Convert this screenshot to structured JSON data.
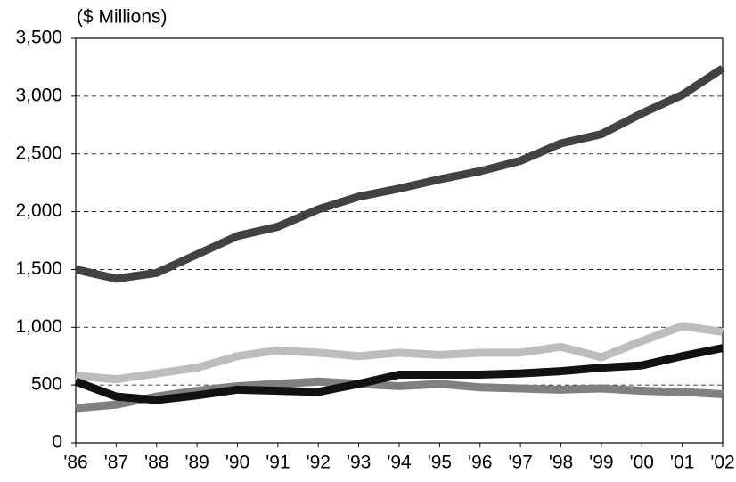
{
  "chart_data": {
    "type": "line",
    "y_label": "($ Millions)",
    "categories": [
      "'86",
      "'87",
      "'88",
      "'89",
      "'90",
      "'91",
      "'92",
      "'93",
      "'94",
      "'95",
      "'96",
      "'97",
      "'98",
      "'99",
      "'00",
      "'01",
      "'02"
    ],
    "series": [
      {
        "color": "#808080",
        "values": [
          300,
          330,
          400,
          450,
          490,
          510,
          530,
          510,
          490,
          510,
          480,
          470,
          460,
          470,
          450,
          440,
          420
        ]
      },
      {
        "color": "#bdbdbd",
        "values": [
          580,
          550,
          600,
          650,
          750,
          800,
          780,
          750,
          780,
          760,
          780,
          780,
          830,
          740,
          880,
          1010,
          960
        ]
      },
      {
        "color": "#111111",
        "values": [
          530,
          400,
          370,
          410,
          460,
          450,
          440,
          510,
          590,
          590,
          590,
          600,
          620,
          650,
          670,
          750,
          820
        ]
      },
      {
        "color": "#424242",
        "values": [
          1500,
          1420,
          1470,
          1630,
          1790,
          1870,
          2020,
          2130,
          2200,
          2280,
          2350,
          2440,
          2590,
          2670,
          2850,
          3010,
          3240
        ]
      }
    ],
    "ylim": [
      0,
      3500
    ],
    "yticks": [
      0,
      500,
      {
        "value": 1000,
        "label": "1,000"
      },
      {
        "value": 1500,
        "label": "1,500"
      },
      {
        "value": 2000,
        "label": "2,000"
      },
      {
        "value": 2500,
        "label": "2,500"
      },
      {
        "value": 3000,
        "label": "3,000"
      },
      {
        "value": 3500,
        "label": "3,500"
      }
    ],
    "grid": true,
    "line_width": 9
  }
}
